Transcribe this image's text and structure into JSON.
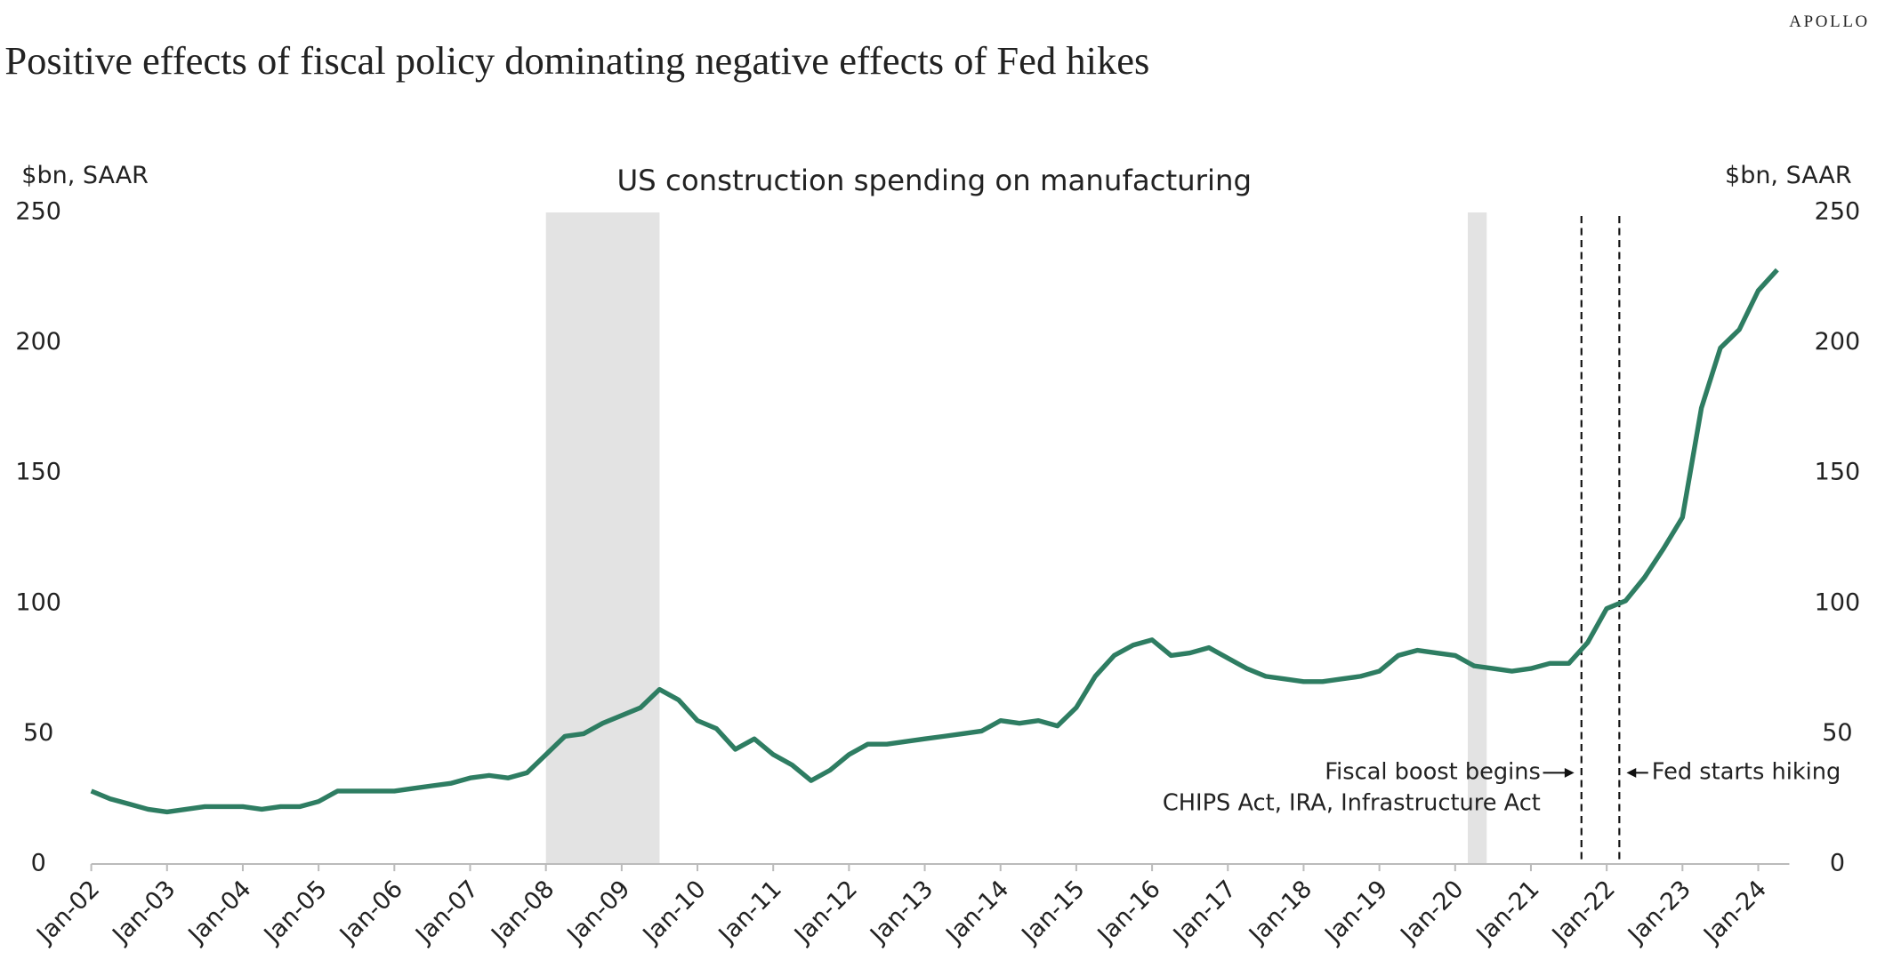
{
  "brand": "APOLLO",
  "chart_data": {
    "type": "line",
    "title": "Positive effects of  fiscal policy dominating negative effects of  Fed hikes",
    "subtitle": "US construction spending on manufacturing",
    "y_label": "$bn, SAAR",
    "y2_label": "$bn, SAAR",
    "x": [
      "Jan-02",
      "Apr-02",
      "Jul-02",
      "Oct-02",
      "Jan-03",
      "Apr-03",
      "Jul-03",
      "Oct-03",
      "Jan-04",
      "Apr-04",
      "Jul-04",
      "Oct-04",
      "Jan-05",
      "Apr-05",
      "Jul-05",
      "Oct-05",
      "Jan-06",
      "Apr-06",
      "Jul-06",
      "Oct-06",
      "Jan-07",
      "Apr-07",
      "Jul-07",
      "Oct-07",
      "Jan-08",
      "Apr-08",
      "Jul-08",
      "Oct-08",
      "Jan-09",
      "Apr-09",
      "Jul-09",
      "Oct-09",
      "Jan-10",
      "Apr-10",
      "Jul-10",
      "Oct-10",
      "Jan-11",
      "Apr-11",
      "Jul-11",
      "Oct-11",
      "Jan-12",
      "Apr-12",
      "Jul-12",
      "Oct-12",
      "Jan-13",
      "Apr-13",
      "Jul-13",
      "Oct-13",
      "Jan-14",
      "Apr-14",
      "Jul-14",
      "Oct-14",
      "Jan-15",
      "Apr-15",
      "Jul-15",
      "Oct-15",
      "Jan-16",
      "Apr-16",
      "Jul-16",
      "Oct-16",
      "Jan-17",
      "Apr-17",
      "Jul-17",
      "Oct-17",
      "Jan-18",
      "Apr-18",
      "Jul-18",
      "Oct-18",
      "Jan-19",
      "Apr-19",
      "Jul-19",
      "Oct-19",
      "Jan-20",
      "Apr-20",
      "Jul-20",
      "Oct-20",
      "Jan-21",
      "Apr-21",
      "Jul-21",
      "Oct-21",
      "Jan-22",
      "Apr-22",
      "Jul-22",
      "Oct-22",
      "Jan-23",
      "Apr-23",
      "Jul-23",
      "Oct-23",
      "Jan-24",
      "Apr-24"
    ],
    "values": [
      28,
      25,
      23,
      21,
      20,
      21,
      22,
      22,
      22,
      21,
      22,
      22,
      24,
      28,
      28,
      28,
      28,
      29,
      30,
      31,
      33,
      34,
      33,
      35,
      42,
      49,
      50,
      54,
      57,
      60,
      67,
      63,
      55,
      52,
      44,
      48,
      42,
      38,
      32,
      36,
      42,
      46,
      46,
      47,
      48,
      49,
      50,
      51,
      55,
      54,
      55,
      53,
      60,
      72,
      80,
      84,
      86,
      80,
      81,
      83,
      79,
      75,
      72,
      71,
      70,
      70,
      71,
      72,
      74,
      80,
      82,
      81,
      80,
      76,
      75,
      74,
      75,
      77,
      77,
      85,
      98,
      101,
      110,
      121,
      133,
      175,
      198,
      205,
      220,
      228
    ],
    "color": "#2e7d62",
    "ylim": [
      0,
      250
    ],
    "yticks": [
      0,
      50,
      100,
      150,
      200,
      250
    ],
    "y2lim": [
      0,
      250
    ],
    "y2ticks": [
      0,
      50,
      100,
      150,
      200,
      250
    ],
    "recessions": [
      {
        "start": "Jan-08",
        "end": "Jun-09"
      },
      {
        "start": "Mar-20",
        "end": "May-20"
      }
    ],
    "recession_color": "#e3e3e3",
    "events": [
      {
        "date": "Sep-21",
        "label": "Fiscal boost begins",
        "note": "CHIPS Act, IRA, Infrastructure Act"
      },
      {
        "date": "Mar-22",
        "label": "Fed starts hiking"
      }
    ]
  }
}
